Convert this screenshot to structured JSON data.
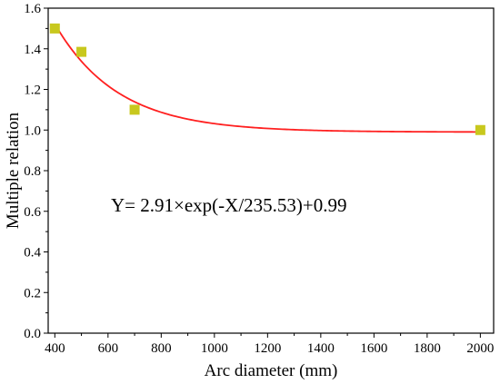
{
  "chart_data": {
    "type": "scatter",
    "xlabel": "Arc diameter (mm)",
    "ylabel": "Multiple relation",
    "xlim": [
      375,
      2050
    ],
    "ylim": [
      0,
      1.6
    ],
    "xticks": [
      "400",
      "600",
      "800",
      "1000",
      "1200",
      "1400",
      "1600",
      "1800",
      "2000"
    ],
    "yticks": [
      "0.0",
      "0.2",
      "0.4",
      "0.6",
      "0.8",
      "1.0",
      "1.2",
      "1.4",
      "1.6"
    ],
    "points": [
      {
        "x": 400,
        "y": 1.5
      },
      {
        "x": 500,
        "y": 1.385
      },
      {
        "x": 700,
        "y": 1.1
      },
      {
        "x": 2000,
        "y": 1.0
      }
    ],
    "fit": {
      "a": 2.91,
      "t": 235.53,
      "c": 0.99
    },
    "annotation": "Y= 2.91×exp(-X/235.53)+0.99",
    "colors": {
      "points": "#c8c81e",
      "fit_line": "#ff2020",
      "axes": "#000000"
    }
  }
}
